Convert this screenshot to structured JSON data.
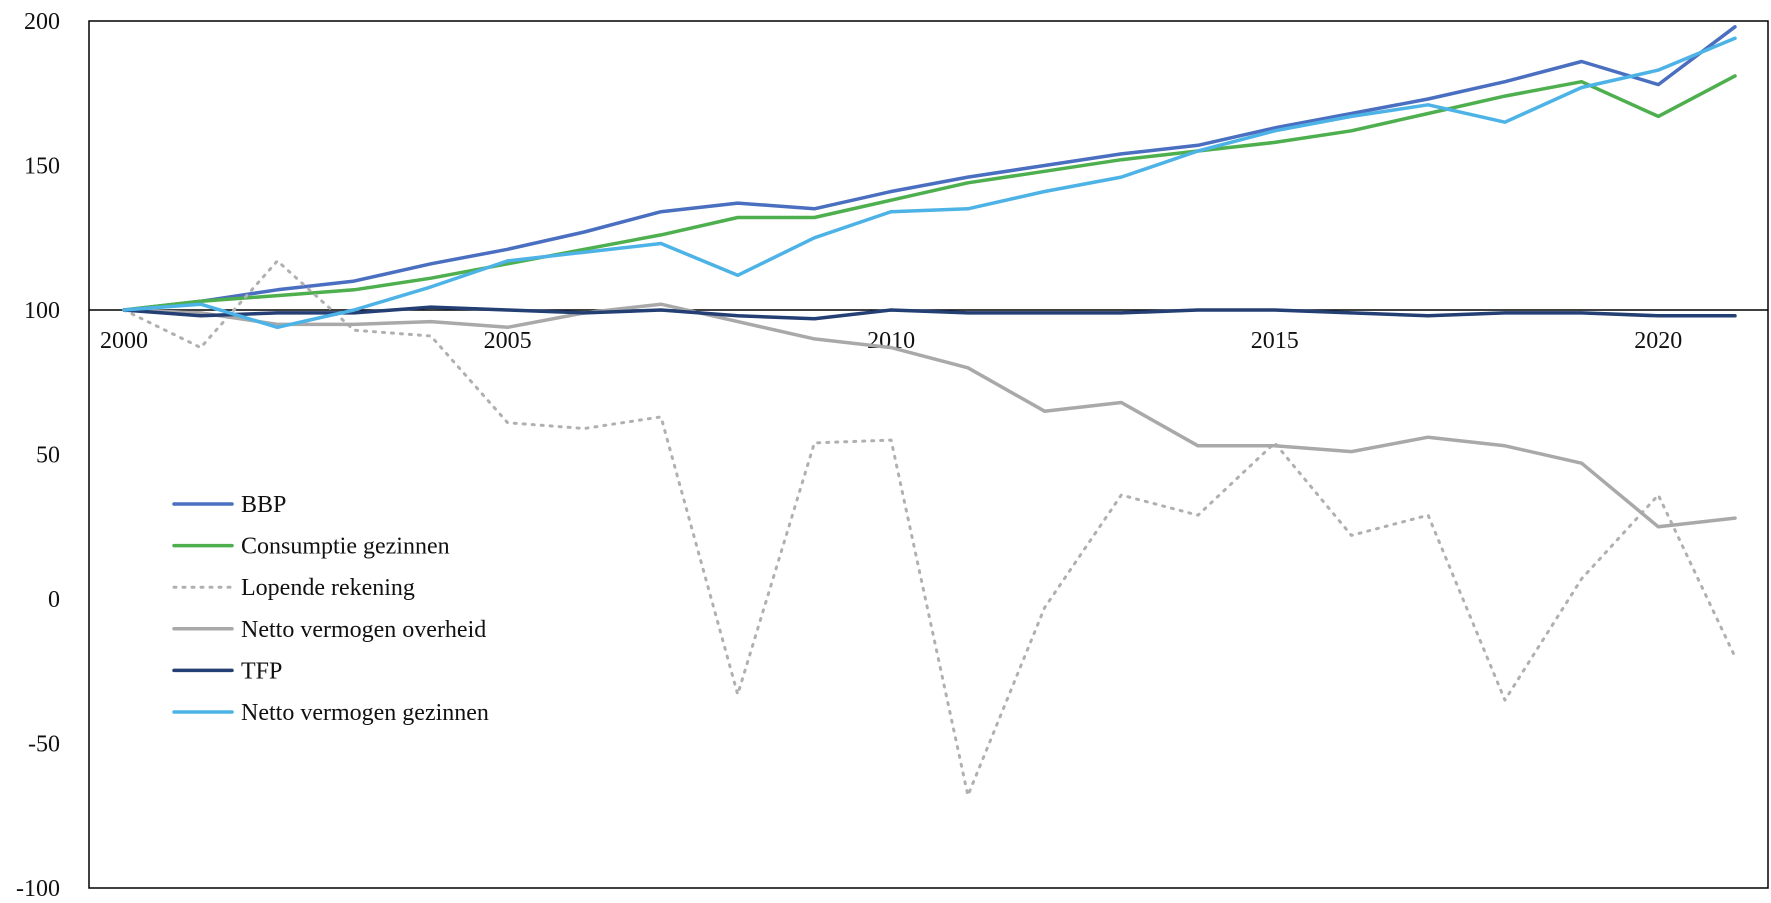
{
  "chart_data": {
    "type": "line",
    "title": "",
    "xlabel": "",
    "ylabel": "",
    "x": [
      2000,
      2001,
      2002,
      2003,
      2004,
      2005,
      2006,
      2007,
      2008,
      2009,
      2010,
      2011,
      2012,
      2013,
      2014,
      2015,
      2016,
      2017,
      2018,
      2019,
      2020,
      2021
    ],
    "xlim": [
      2000,
      2021
    ],
    "ylim": [
      -100,
      200
    ],
    "y_ticks": [
      "200",
      "150",
      "100",
      "50",
      "0",
      "-50",
      "-100"
    ],
    "y_tick_values": [
      200,
      150,
      100,
      50,
      0,
      -50,
      -100
    ],
    "x_ticks": [
      "2000",
      "2005",
      "2010",
      "2015",
      "2020"
    ],
    "x_tick_values": [
      2000,
      2005,
      2010,
      2015,
      2020
    ],
    "grid": false,
    "legend_position": "left-middle",
    "series": [
      {
        "name": "BBP",
        "color": "#4A6FC0",
        "style": "solid",
        "values": [
          100,
          103,
          107,
          110,
          116,
          121,
          127,
          134,
          137,
          135,
          141,
          146,
          150,
          154,
          157,
          163,
          168,
          173,
          179,
          186,
          178,
          198
        ]
      },
      {
        "name": "Consumptie gezinnen",
        "color": "#4EAF4E",
        "style": "solid",
        "values": [
          100,
          103,
          105,
          107,
          111,
          116,
          121,
          126,
          132,
          132,
          138,
          144,
          148,
          152,
          155,
          158,
          162,
          168,
          174,
          179,
          167,
          181
        ]
      },
      {
        "name": "Lopende rekening",
        "color": "#B0B0B0",
        "style": "dotted",
        "values": [
          100,
          87,
          117,
          93,
          91,
          61,
          59,
          63,
          -33,
          54,
          55,
          -68,
          -3,
          36,
          29,
          54,
          22,
          29,
          -35,
          7,
          36,
          -20
        ]
      },
      {
        "name": "Netto vermogen overheid",
        "color": "#A9A9A9",
        "style": "solid",
        "values": [
          100,
          99,
          95,
          95,
          96,
          94,
          99,
          102,
          96,
          90,
          87,
          80,
          65,
          68,
          53,
          53,
          51,
          56,
          53,
          47,
          25,
          28
        ]
      },
      {
        "name": "TFP",
        "color": "#243F73",
        "style": "solid",
        "values": [
          100,
          98,
          99,
          99,
          101,
          100,
          99,
          100,
          98,
          97,
          100,
          99,
          99,
          99,
          100,
          100,
          99,
          98,
          99,
          99,
          98,
          98
        ]
      },
      {
        "name": "Netto vermogen gezinnen",
        "color": "#4DB3E6",
        "style": "solid",
        "values": [
          100,
          102,
          94,
          100,
          108,
          117,
          120,
          123,
          112,
          125,
          134,
          135,
          141,
          146,
          155,
          162,
          167,
          171,
          165,
          177,
          183,
          194
        ]
      }
    ]
  }
}
